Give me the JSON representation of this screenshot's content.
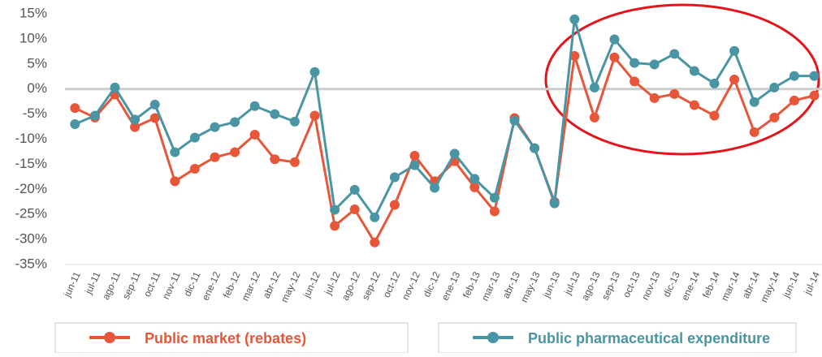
{
  "chart_data": {
    "type": "line",
    "categories": [
      "jun-11",
      "jul-11",
      "ago-11",
      "sep-11",
      "oct-11",
      "nov-11",
      "dic-11",
      "ene-12",
      "feb-12",
      "mar-12",
      "abr-12",
      "may-12",
      "jun-12",
      "jul-12",
      "ago-12",
      "sep-12",
      "oct-12",
      "nov-12",
      "dic-12",
      "ene-13",
      "feb-13",
      "mar-13",
      "abr-13",
      "may-13",
      "jun-13",
      "jul-13",
      "ago-13",
      "sep-13",
      "oct-13",
      "nov-13",
      "dic-13",
      "ene-14",
      "feb-14",
      "mar-14",
      "abr-14",
      "may-14",
      "jun-14",
      "jul-14"
    ],
    "series": [
      {
        "name": "Public market (rebates)",
        "color": "#e8563a",
        "values": [
          -3.8,
          -5.7,
          -1.1,
          -7.6,
          -5.8,
          -18.4,
          -15.9,
          -13.6,
          -12.6,
          -9.1,
          -14,
          -14.6,
          -5.3,
          -27.3,
          -24,
          -30.6,
          -23.1,
          -13.3,
          -18.4,
          -14.4,
          -19.6,
          -24.4,
          -5.8,
          -11.8,
          -22.5,
          6.6,
          -5.7,
          6.3,
          1.5,
          -1.8,
          -1,
          -3.2,
          -5.3,
          1.9,
          -8.6,
          -5.7,
          -2.3,
          -1.3
        ]
      },
      {
        "name": "Public pharmaceutical expenditure",
        "color": "#4a95a3",
        "values": [
          -7,
          -5.3,
          0.3,
          -6.1,
          -3.1,
          -12.6,
          -9.7,
          -7.6,
          -6.6,
          -3.4,
          -5,
          -6.5,
          3.4,
          -24.1,
          -20.1,
          -25.6,
          -17.6,
          -15.2,
          -19.7,
          -12.9,
          -17.9,
          -21.7,
          -6.3,
          -11.8,
          -22.8,
          13.9,
          0.3,
          9.9,
          5.2,
          4.9,
          7,
          3.6,
          1.1,
          7.6,
          -2.6,
          0.3,
          2.6,
          2.6
        ]
      }
    ],
    "ylim": [
      -35,
      15
    ],
    "yticks": [
      {
        "value": 15,
        "label": "15%"
      },
      {
        "value": 10,
        "label": "10%"
      },
      {
        "value": 5,
        "label": "5%"
      },
      {
        "value": 0,
        "label": "0%"
      },
      {
        "value": -5,
        "label": "-5%"
      },
      {
        "value": -10,
        "label": "-10%"
      },
      {
        "value": -15,
        "label": "-15%"
      },
      {
        "value": -20,
        "label": "-20%"
      },
      {
        "value": -25,
        "label": "-25%"
      },
      {
        "value": -30,
        "label": "-30%"
      },
      {
        "value": -35,
        "label": "-35%"
      }
    ],
    "grid": false
  }
}
